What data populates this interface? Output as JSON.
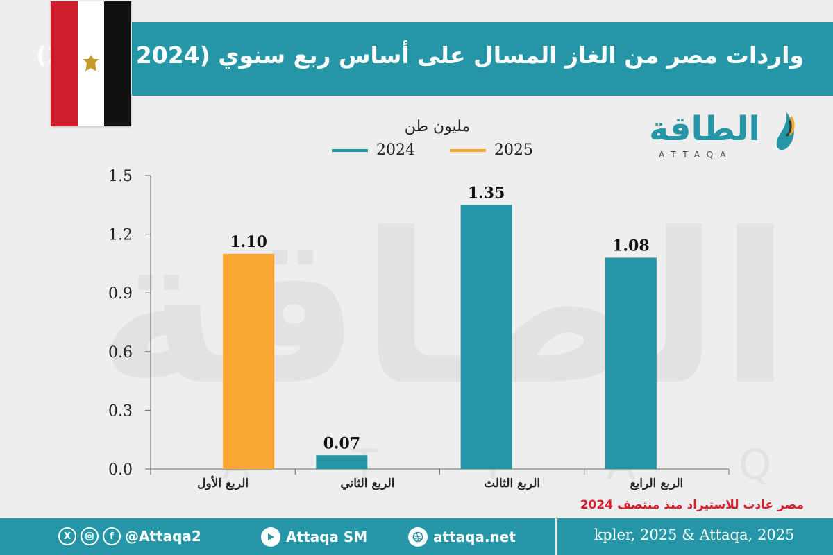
{
  "header": {
    "title": "واردات مصر من الغاز المسال على أساس ربع سنوي (2024 - 2025)"
  },
  "brand": {
    "logo_arabic": "الطاقة",
    "logo_latin": "ATTAQA"
  },
  "colors": {
    "teal": "#2496a6",
    "orange": "#f9a531",
    "note_red": "#d6202a"
  },
  "chart_data": {
    "type": "bar",
    "ylabel": "مليون طن",
    "ylim": [
      0,
      1.5
    ],
    "yticks": [
      "0.0",
      "0.3",
      "0.6",
      "0.9",
      "1.2",
      "1.5"
    ],
    "categories": [
      "الربع الأول",
      "الربع الثاني",
      "الربع الثالث",
      "الربع الرابع"
    ],
    "series": [
      {
        "name": "2024",
        "color": "#2496a6",
        "values": [
          null,
          0.07,
          1.35,
          1.08
        ],
        "labels": [
          "",
          "0.07",
          "1.35",
          "1.08"
        ]
      },
      {
        "name": "2025",
        "color": "#f9a531",
        "values": [
          1.1,
          null,
          null,
          null
        ],
        "labels": [
          "1.10",
          "",
          "",
          ""
        ]
      }
    ],
    "legend_position": "top-center",
    "grid": false
  },
  "note": "مصر عادت للاستيراد منذ منتصف 2024",
  "footer": {
    "social_handle": "@Attaqa2",
    "youtube": "Attaqa SM",
    "website": "attaqa.net",
    "source": "kpler, 2025 & Attaqa, 2025",
    "icons": [
      "x-icon",
      "instagram-icon",
      "facebook-icon",
      "youtube-icon",
      "web-icon"
    ]
  }
}
